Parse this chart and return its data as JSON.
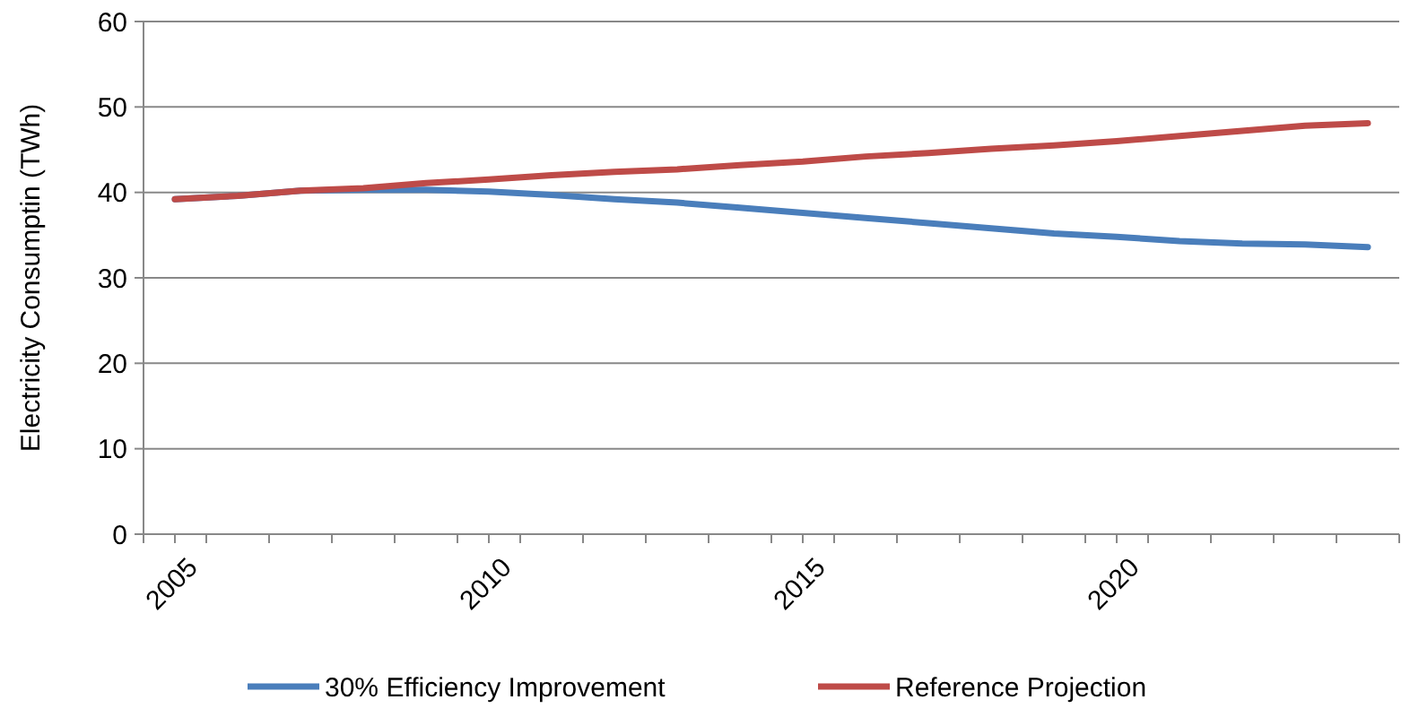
{
  "chart_data": {
    "type": "line",
    "ylabel": "Electricity Consumptin (TWh)",
    "x": [
      2005,
      2006,
      2007,
      2008,
      2009,
      2010,
      2011,
      2012,
      2013,
      2014,
      2015,
      2016,
      2017,
      2018,
      2019,
      2020,
      2021,
      2022,
      2023,
      2024
    ],
    "series": [
      {
        "name": "30% Efficiency Improvement",
        "color": "#4a7ebb",
        "values": [
          39.2,
          39.6,
          40.2,
          40.3,
          40.3,
          40.1,
          39.7,
          39.2,
          38.8,
          38.2,
          37.6,
          37.0,
          36.4,
          35.8,
          35.2,
          34.8,
          34.3,
          34.0,
          33.9,
          33.6
        ]
      },
      {
        "name": "Reference Projection",
        "color": "#be4b48",
        "values": [
          39.2,
          39.6,
          40.2,
          40.5,
          41.1,
          41.5,
          42.0,
          42.4,
          42.7,
          43.2,
          43.6,
          44.2,
          44.6,
          45.1,
          45.5,
          46.0,
          46.6,
          47.2,
          47.8,
          48.1
        ]
      }
    ],
    "xlim": [
      2004.5,
      2024.5
    ],
    "xticks": [
      {
        "value": 2004.5,
        "label": null
      },
      {
        "value": 2005,
        "label": "2005"
      },
      {
        "value": 2005.5,
        "label": null
      },
      {
        "value": 2006.5,
        "label": null
      },
      {
        "value": 2007.5,
        "label": null
      },
      {
        "value": 2008.5,
        "label": null
      },
      {
        "value": 2009.5,
        "label": null
      },
      {
        "value": 2010,
        "label": "2010"
      },
      {
        "value": 2010.5,
        "label": null
      },
      {
        "value": 2011.5,
        "label": null
      },
      {
        "value": 2012.5,
        "label": null
      },
      {
        "value": 2013.5,
        "label": null
      },
      {
        "value": 2014.5,
        "label": null
      },
      {
        "value": 2015,
        "label": "2015"
      },
      {
        "value": 2015.5,
        "label": null
      },
      {
        "value": 2016.5,
        "label": null
      },
      {
        "value": 2017.5,
        "label": null
      },
      {
        "value": 2018.5,
        "label": null
      },
      {
        "value": 2019.5,
        "label": null
      },
      {
        "value": 2020,
        "label": "2020"
      },
      {
        "value": 2020.5,
        "label": null
      },
      {
        "value": 2021.5,
        "label": null
      },
      {
        "value": 2022.5,
        "label": null
      },
      {
        "value": 2023.5,
        "label": null
      },
      {
        "value": 2024.5,
        "label": null
      }
    ],
    "ylim": [
      0,
      60
    ],
    "yticks": [
      0,
      10,
      20,
      30,
      40,
      50,
      60
    ],
    "grid": "y",
    "legend": "bottom",
    "marker": "none",
    "line_style": "solid"
  }
}
